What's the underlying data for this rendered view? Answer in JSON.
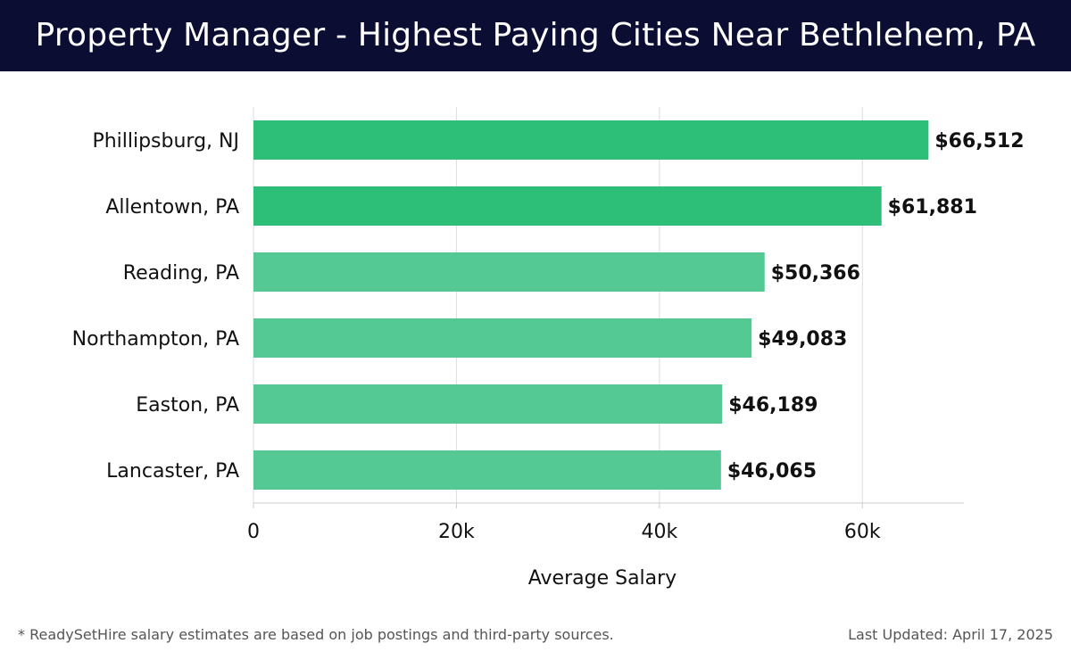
{
  "header": {
    "title": "Property Manager - Highest Paying Cities Near Bethlehem, PA"
  },
  "chart_data": {
    "type": "bar",
    "orientation": "horizontal",
    "categories": [
      "Phillipsburg, NJ",
      "Allentown, PA",
      "Reading, PA",
      "Northampton, PA",
      "Easton, PA",
      "Lancaster, PA"
    ],
    "values": [
      66512,
      61881,
      50366,
      49083,
      46189,
      46065
    ],
    "value_labels": [
      "$66,512",
      "$61,881",
      "$50,366",
      "$49,083",
      "$46,189",
      "$46,065"
    ],
    "xlabel": "Average Salary",
    "ylabel": "",
    "xlim": [
      0,
      70000
    ],
    "x_ticks": [
      0,
      20000,
      40000,
      60000
    ],
    "x_tick_labels": [
      "0",
      "20k",
      "40k",
      "60k"
    ],
    "grid": "vertical",
    "colors": {
      "top_bars": "#2dbe78",
      "other_bars": "#54c993",
      "grid": "#dddddd",
      "axis": "#cccccc",
      "text": "#111111"
    }
  },
  "footer": {
    "note": "* ReadySetHire salary estimates are based on job postings and third-party sources.",
    "updated": "Last Updated: April 17, 2025"
  }
}
